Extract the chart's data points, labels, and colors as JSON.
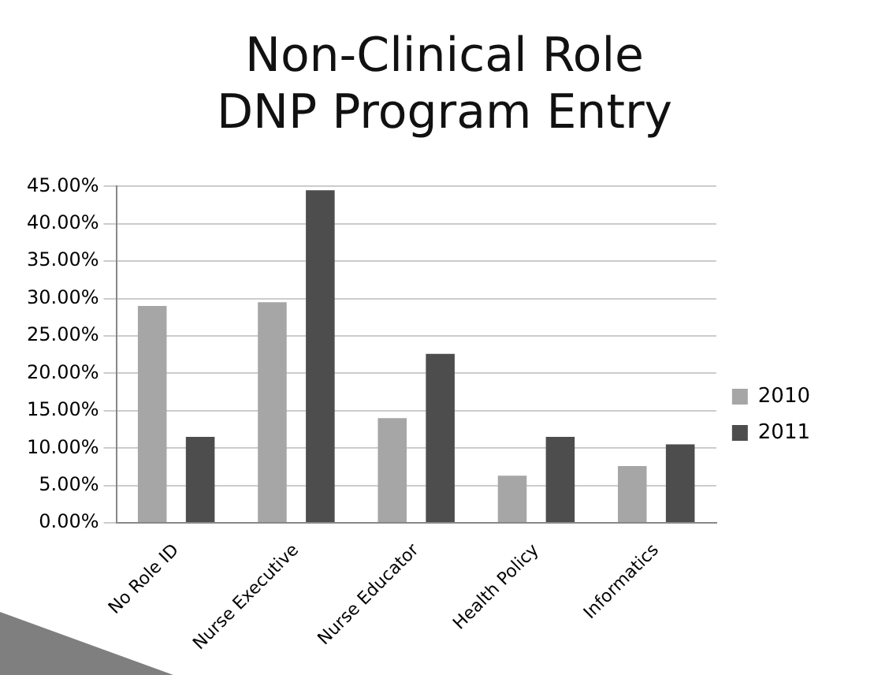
{
  "chart_data": {
    "type": "bar",
    "title": "Non-Clinical Role\nDNP Program Entry",
    "categories": [
      "No Role ID",
      "Nurse Executive",
      "Nurse Educator",
      "Health Policy",
      "Informatics"
    ],
    "series": [
      {
        "name": "2010",
        "color": "#a6a6a6",
        "values": [
          29,
          29.5,
          14,
          6.3,
          7.6
        ]
      },
      {
        "name": "2011",
        "color": "#4d4d4d",
        "values": [
          11.5,
          44.5,
          22.6,
          11.5,
          10.5
        ]
      }
    ],
    "ylim": [
      0,
      45
    ],
    "yticks": [
      {
        "value": 0,
        "label": "0.00%"
      },
      {
        "value": 5,
        "label": "5.00%"
      },
      {
        "value": 10,
        "label": "10.00%"
      },
      {
        "value": 15,
        "label": "15.00%"
      },
      {
        "value": 20,
        "label": "20.00%"
      },
      {
        "value": 25,
        "label": "25.00%"
      },
      {
        "value": 30,
        "label": "30.00%"
      },
      {
        "value": 35,
        "label": "35.00%"
      },
      {
        "value": 40,
        "label": "40.00%"
      },
      {
        "value": 45,
        "label": "45.00%"
      }
    ],
    "grid": "y",
    "legend": "right"
  }
}
